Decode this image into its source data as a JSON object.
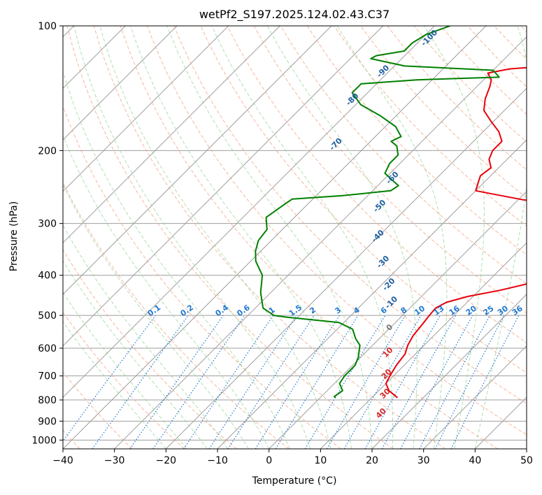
{
  "chart_data": {
    "type": "line",
    "title": "wetPf2_S197.2025.124.02.43.C37",
    "xlabel": "Temperature (°C)",
    "ylabel": "Pressure (hPa)",
    "xlim": [
      -40,
      50
    ],
    "ylim": [
      1050,
      100
    ],
    "y_scale": "log",
    "skew": true,
    "grid": true,
    "x_ticks": [
      -40,
      -30,
      -20,
      -10,
      0,
      10,
      20,
      30,
      40,
      50
    ],
    "y_ticks": [
      100,
      200,
      300,
      400,
      500,
      600,
      700,
      800,
      900,
      1000
    ],
    "series": [
      {
        "role": "temperature",
        "color": "#e8000b",
        "points": [
          [
            15.0,
            790
          ],
          [
            12.0,
            760
          ],
          [
            10.0,
            730
          ],
          [
            9.3,
            700
          ],
          [
            8.5,
            660
          ],
          [
            8.0,
            620
          ],
          [
            6.8,
            590
          ],
          [
            6.0,
            560
          ],
          [
            5.5,
            520
          ],
          [
            5.2,
            500
          ],
          [
            5.0,
            480
          ],
          [
            6.0,
            465
          ],
          [
            9.0,
            450
          ],
          [
            14.0,
            435
          ],
          [
            18.0,
            420
          ],
          [
            17.5,
            400
          ],
          [
            18.0,
            385
          ],
          [
            22.0,
            370
          ],
          [
            27.0,
            360
          ],
          [
            35.0,
            345
          ],
          [
            45.0,
            335
          ],
          [
            55.0,
            327
          ],
          [
            45.0,
            303
          ],
          [
            33.0,
            292
          ],
          [
            15.0,
            275
          ],
          [
            1.0,
            263
          ],
          [
            -10.0,
            250
          ],
          [
            -11.0,
            240
          ],
          [
            -12.0,
            230
          ],
          [
            -11.5,
            220
          ],
          [
            -13.5,
            210
          ],
          [
            -14.5,
            200
          ],
          [
            -14.5,
            190
          ],
          [
            -17.0,
            180
          ],
          [
            -20.5,
            170
          ],
          [
            -24.0,
            160
          ],
          [
            -26.0,
            150
          ],
          [
            -27.5,
            140
          ],
          [
            -28.5,
            135
          ],
          [
            -30.5,
            130
          ],
          [
            -27.0,
            127
          ],
          [
            -20.0,
            125
          ],
          [
            -15.0,
            122
          ],
          [
            -12.0,
            120
          ],
          [
            -7.0,
            115
          ],
          [
            -6.0,
            110
          ],
          [
            -9.0,
            105
          ],
          [
            -10.0,
            100
          ]
        ]
      },
      {
        "role": "dewpoint",
        "color": "#008000",
        "points": [
          [
            3.0,
            790
          ],
          [
            2.5,
            785
          ],
          [
            3.0,
            760
          ],
          [
            1.0,
            730
          ],
          [
            0.5,
            700
          ],
          [
            0.5,
            660
          ],
          [
            -0.5,
            630
          ],
          [
            -2.5,
            590
          ],
          [
            -4.5,
            570
          ],
          [
            -7.0,
            540
          ],
          [
            -11.0,
            520
          ],
          [
            -22.0,
            505
          ],
          [
            -25.0,
            500
          ],
          [
            -28.5,
            480
          ],
          [
            -32.0,
            440
          ],
          [
            -35.0,
            400
          ],
          [
            -39.0,
            370
          ],
          [
            -41.0,
            350
          ],
          [
            -42.5,
            330
          ],
          [
            -43.0,
            310
          ],
          [
            -45.5,
            290
          ],
          [
            -45.0,
            280
          ],
          [
            -44.5,
            270
          ],
          [
            -44.0,
            262
          ],
          [
            -35.0,
            257
          ],
          [
            -26.5,
            250
          ],
          [
            -26.0,
            243
          ],
          [
            -28.5,
            235
          ],
          [
            -31.0,
            227
          ],
          [
            -32.0,
            215
          ],
          [
            -32.0,
            205
          ],
          [
            -34.0,
            195
          ],
          [
            -36.0,
            190
          ],
          [
            -35.0,
            185
          ],
          [
            -38.0,
            175
          ],
          [
            -43.0,
            165
          ],
          [
            -49.0,
            155
          ],
          [
            -53.0,
            145
          ],
          [
            -53.0,
            138
          ],
          [
            -43.0,
            135
          ],
          [
            -27.5,
            133
          ],
          [
            -30.0,
            128
          ],
          [
            -48.0,
            125
          ],
          [
            -56.0,
            120
          ],
          [
            -55.5,
            118
          ],
          [
            -51.0,
            115
          ],
          [
            -51.0,
            110
          ],
          [
            -50.0,
            105
          ],
          [
            -47.0,
            100
          ]
        ]
      }
    ],
    "dry_adiabat_labels": [
      "-100",
      "-90",
      "-80",
      "-70",
      "-60",
      "-50",
      "-40",
      "-30",
      "-20",
      "-10",
      "0",
      "10",
      "20",
      "30",
      "40"
    ],
    "mixing_ratio_labels": [
      "0.1",
      "0.2",
      "0.4",
      "0.6",
      "1",
      "1.5",
      "2",
      "3",
      "4",
      "6",
      "8",
      "10",
      "13",
      "16",
      "20",
      "25",
      "30",
      "36"
    ]
  },
  "colors": {
    "isotherm": "#9e9e9e",
    "isobar": "#9e9e9e",
    "dry_adiabat": "#f4a582",
    "moist_adiabat": "#8fd18f",
    "mixing_ratio": "#1f78d1",
    "dry_adiabat_label_high": "#1f5f9f",
    "dry_adiabat_label_low": "#d62728",
    "theta_zero_label": "#777777"
  }
}
